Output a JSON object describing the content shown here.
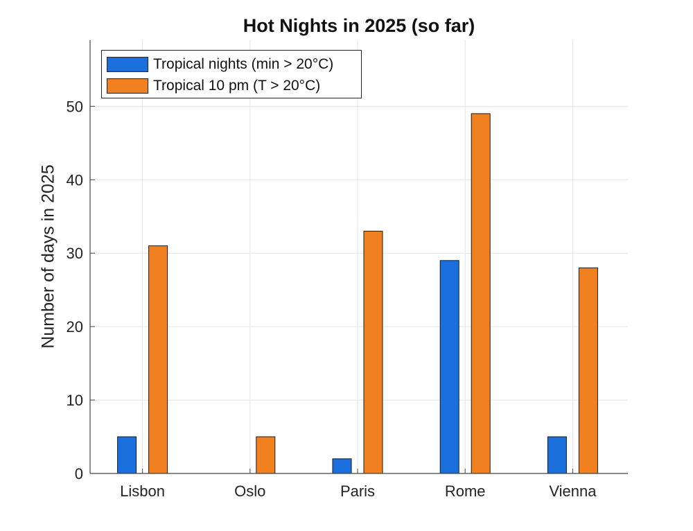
{
  "chart_data": {
    "type": "bar",
    "title": "Hot Nights in 2025 (so far)",
    "xlabel": "",
    "ylabel": "Number of days in 2025",
    "categories": [
      "Lisbon",
      "Oslo",
      "Paris",
      "Rome",
      "Vienna"
    ],
    "series": [
      {
        "name": "Tropical nights (min > 20°C)",
        "values": [
          5,
          0,
          2,
          29,
          5
        ],
        "color": "#1a6fdc"
      },
      {
        "name": "Tropical 10 pm (T > 20°C)",
        "values": [
          31,
          5,
          33,
          49,
          28
        ],
        "color": "#f08020"
      }
    ],
    "ylim": [
      0,
      59
    ],
    "yticks": [
      0,
      10,
      20,
      30,
      40,
      50
    ],
    "grid": true,
    "legend_position": "top-left"
  }
}
